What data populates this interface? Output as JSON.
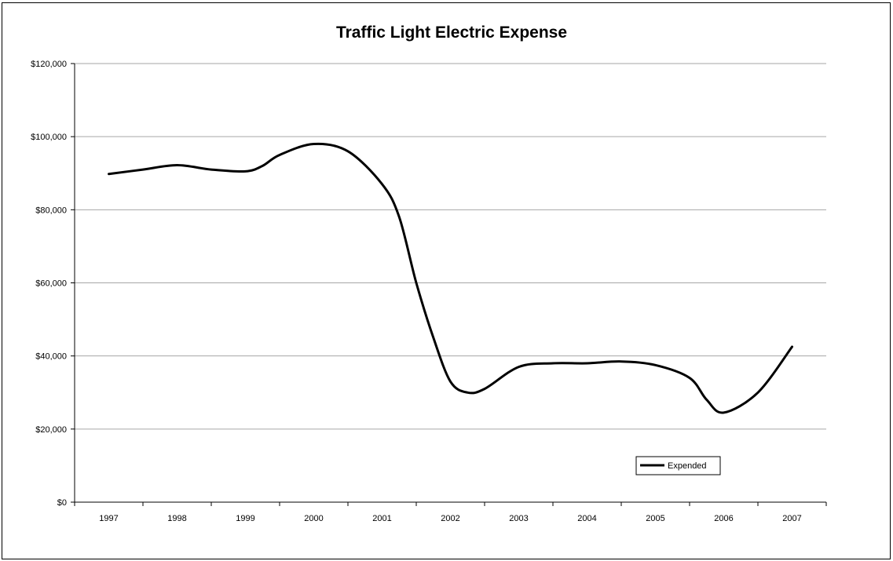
{
  "chart_data": {
    "type": "line",
    "title": "Traffic Light Electric Expense",
    "xlabel": "",
    "ylabel": "",
    "categories": [
      "1997",
      "1998",
      "1999",
      "2000",
      "2001",
      "2002",
      "2003",
      "2004",
      "2005",
      "2006",
      "2007"
    ],
    "ylim": [
      0,
      120000
    ],
    "yticks": [
      "$0",
      "$20,000",
      "$40,000",
      "$60,000",
      "$80,000",
      "$100,000",
      "$120,000"
    ],
    "series": [
      {
        "name": "Expended",
        "color": "#000000",
        "x": [
          1997,
          1997.5,
          1998,
          1998.5,
          1999,
          1999.25,
          1999.5,
          2000,
          2000.5,
          2001,
          2001.25,
          2001.5,
          2001.75,
          2002,
          2002.25,
          2002.5,
          2003,
          2003.5,
          2004,
          2004.5,
          2005,
          2005.5,
          2005.75,
          2006,
          2006.5,
          2007
        ],
        "values": [
          89800,
          91000,
          92200,
          91000,
          90500,
          92000,
          95000,
          98000,
          96000,
          87000,
          78000,
          60000,
          45000,
          33000,
          30000,
          31000,
          37000,
          38000,
          38000,
          38500,
          37500,
          34000,
          28000,
          24500,
          30000,
          42500
        ]
      }
    ],
    "grid": true,
    "legend_position": "bottom-right"
  },
  "legend": {
    "label": "Expended"
  }
}
